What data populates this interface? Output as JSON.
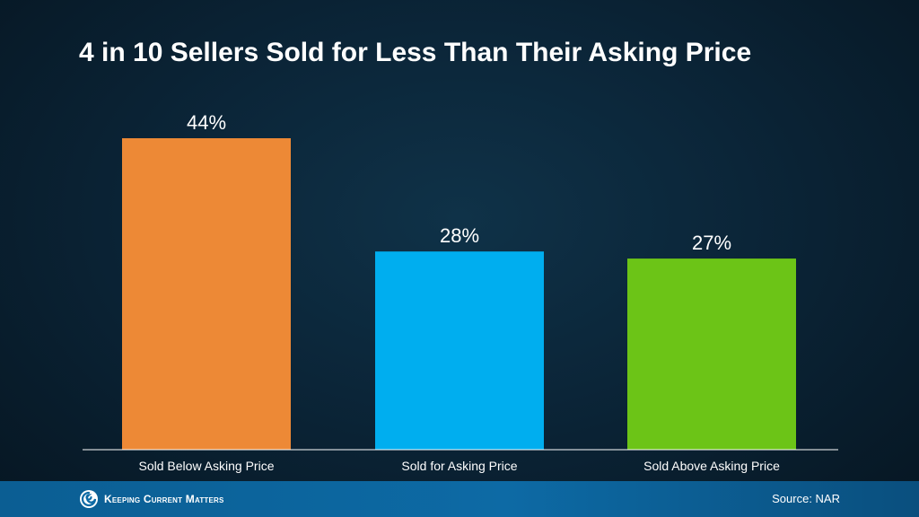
{
  "slide": {
    "title": "4 in 10 Sellers Sold for Less Than Their Asking Price"
  },
  "footer": {
    "logo_text": "Keeping Current Matters",
    "source": "Source: NAR",
    "logo_icon": "swirl-logo-icon"
  },
  "chart_data": {
    "type": "bar",
    "title": "4 in 10 Sellers Sold for Less Than Their Asking Price",
    "categories": [
      "Sold Below Asking Price",
      "Sold for Asking Price",
      "Sold Above Asking Price"
    ],
    "values": [
      44,
      28,
      27
    ],
    "value_labels": [
      "44%",
      "28%",
      "27%"
    ],
    "colors": [
      "#ed8936",
      "#00aeef",
      "#6cc417"
    ],
    "xlabel": "",
    "ylabel": "",
    "ylim": [
      0,
      44
    ],
    "grid": false,
    "legend": "none"
  },
  "colors": {
    "background": "#0b2538",
    "footer": "#0d6aa5",
    "axis": "#ffffff"
  }
}
